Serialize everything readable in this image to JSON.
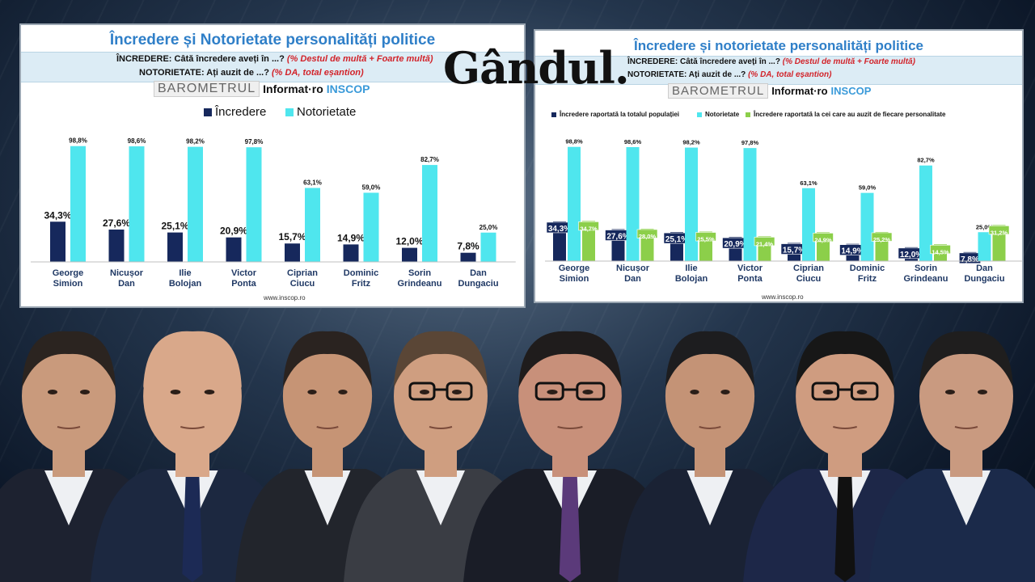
{
  "logo": "Gândul.",
  "chart_data": [
    {
      "type": "bar",
      "title": "Încredere și Notorietate personalități politice",
      "question1_label": "ÎNCREDERE: Câtă încredere aveți în ...?",
      "question1_note": "(% Destul de multă + Foarte multă)",
      "question2_label": "NOTORIETATE: Ați auzit de ...?",
      "question2_note": "(% DA, total eșantion)",
      "brand": {
        "barometer": "BAROMETRUL",
        "informat": "Informat·ro",
        "inscop": "INSCOP"
      },
      "url": "www.inscop.ro",
      "categories": [
        "George Simion",
        "Nicușor Dan",
        "Ilie Bolojan",
        "Victor Ponta",
        "Ciprian Ciucu",
        "Dominic Fritz",
        "Sorin Grindeanu",
        "Dan Dungaciu"
      ],
      "series": [
        {
          "name": "Încredere",
          "color": "#16285c",
          "values": [
            34.3,
            27.6,
            25.1,
            20.9,
            15.7,
            14.9,
            12.0,
            7.8
          ],
          "labels": [
            "34,3%",
            "27,6%",
            "25,1%",
            "20,9%",
            "15,7%",
            "14,9%",
            "12,0%",
            "7,8%"
          ]
        },
        {
          "name": "Notorietate",
          "color": "#4fe6ee",
          "values": [
            98.8,
            98.6,
            98.2,
            97.8,
            63.1,
            59.0,
            82.7,
            25.0
          ],
          "labels": [
            "98,8%",
            "98,6%",
            "98,2%",
            "97,8%",
            "63,1%",
            "59,0%",
            "82,7%",
            "25,0%"
          ]
        }
      ],
      "ylim": [
        0,
        100
      ],
      "grid": false,
      "legend_position": "top"
    },
    {
      "type": "bar",
      "title": "Încredere și notorietate personalități politice",
      "question1_label": "ÎNCREDERE: Câtă încredere aveți în ...?",
      "question1_note": "(% Destul de multă + Foarte multă)",
      "question2_label": "NOTORIETATE: Ați auzit de ...?",
      "question2_note": "(% DA, total eșantion)",
      "brand": {
        "barometer": "BAROMETRUL",
        "informat": "Informat·ro",
        "inscop": "INSCOP"
      },
      "url": "www.inscop.ro",
      "categories": [
        "George Simion",
        "Nicușor Dan",
        "Ilie Bolojan",
        "Victor Ponta",
        "Ciprian Ciucu",
        "Dominic Fritz",
        "Sorin Grindeanu",
        "Dan Dungaciu"
      ],
      "series": [
        {
          "name": "Încredere raportată la totalul populației",
          "color": "#16285c",
          "values": [
            34.3,
            27.6,
            25.1,
            20.9,
            15.7,
            14.9,
            12.0,
            7.8
          ],
          "labels": [
            "34,3%",
            "27,6%",
            "25,1%",
            "20,9%",
            "15,7%",
            "14,9%",
            "12,0%",
            "7,8%"
          ]
        },
        {
          "name": "Notorietate",
          "color": "#4fe6ee",
          "values": [
            98.8,
            98.6,
            98.2,
            97.8,
            63.1,
            59.0,
            82.7,
            25.0
          ],
          "labels": [
            "98,8%",
            "98,6%",
            "98,2%",
            "97,8%",
            "63,1%",
            "59,0%",
            "82,7%",
            "25,0%"
          ]
        },
        {
          "name": "Încredere raportată la cei care au auzit de fiecare personalitate",
          "color": "#8ccf4a",
          "values": [
            34.7,
            28.0,
            25.5,
            21.4,
            24.9,
            25.2,
            14.5,
            31.2
          ],
          "labels": [
            "34,7%",
            "28,0%",
            "25,5%",
            "21,4%",
            "24,9%",
            "25,2%",
            "14,5%",
            "31,2%"
          ]
        }
      ],
      "ylim": [
        0,
        100
      ],
      "grid": false,
      "legend_position": "top"
    }
  ],
  "photos": [
    {
      "skin": "#c99a7c",
      "hair": "#2b2420",
      "suit": "#1d2230"
    },
    {
      "skin": "#d9a88a",
      "hair": "#d9a88a",
      "suit": "#1c2840"
    },
    {
      "skin": "#c69475",
      "hair": "#2a2320",
      "suit": "#22252c"
    },
    {
      "skin": "#cf9e80",
      "hair": "#5a4636",
      "suit": "#3a3d44"
    },
    {
      "skin": "#c8907a",
      "hair": "#1f1c1c",
      "suit": "#1a1d27"
    },
    {
      "skin": "#c49376",
      "hair": "#1d1d1f",
      "suit": "#1a2234"
    },
    {
      "skin": "#cf9c80",
      "hair": "#171717",
      "suit": "#1d2748"
    },
    {
      "skin": "#c99a80",
      "hair": "#1f1e1e",
      "suit": "#1b2a4a"
    }
  ]
}
